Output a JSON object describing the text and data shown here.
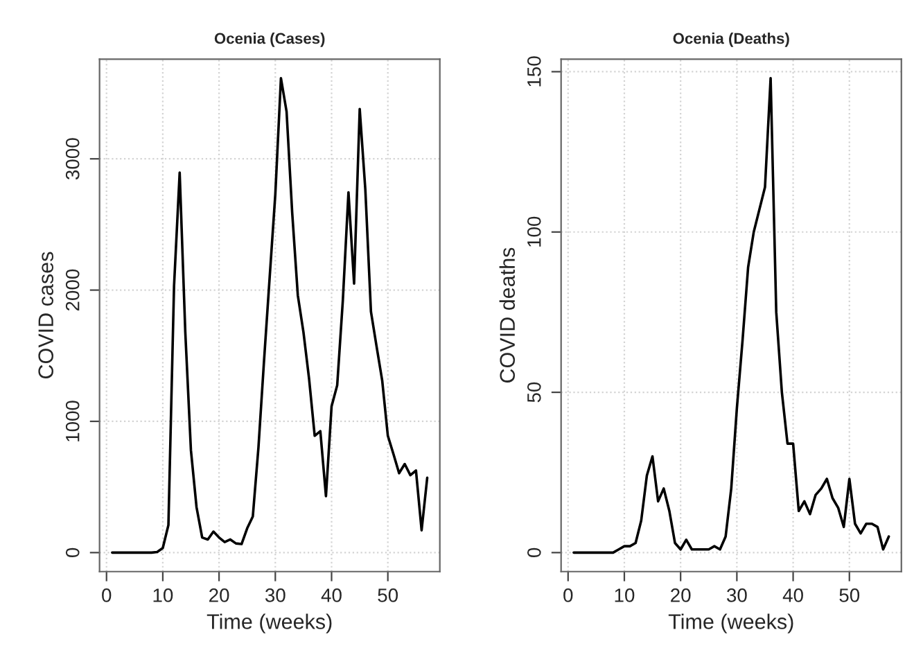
{
  "chart_data": [
    {
      "type": "line",
      "title": "Ocenia (Cases)",
      "xlabel": "Time (weeks)",
      "ylabel": "COVID cases",
      "x": [
        1,
        2,
        3,
        4,
        5,
        6,
        7,
        8,
        9,
        10,
        11,
        12,
        13,
        14,
        15,
        16,
        17,
        18,
        19,
        20,
        21,
        22,
        23,
        24,
        25,
        26,
        27,
        28,
        29,
        30,
        31,
        32,
        33,
        34,
        35,
        36,
        37,
        38,
        39,
        40,
        41,
        42,
        43,
        44,
        45,
        46,
        47,
        48,
        49,
        50,
        51,
        52,
        53,
        54,
        55,
        56,
        57
      ],
      "series": [
        {
          "color": "#000000",
          "values": [
            0,
            0,
            0,
            0,
            0,
            0,
            0,
            0,
            5,
            35,
            210,
            2030,
            2895,
            1680,
            780,
            345,
            115,
            100,
            160,
            115,
            80,
            100,
            70,
            65,
            185,
            275,
            800,
            1465,
            2100,
            2730,
            3615,
            3360,
            2590,
            1960,
            1680,
            1325,
            890,
            925,
            430,
            1115,
            1275,
            1920,
            2745,
            2050,
            3380,
            2765,
            1835,
            1570,
            1310,
            890,
            750,
            605,
            675,
            590,
            625,
            170,
            570
          ]
        }
      ],
      "xlim": [
        -1.24,
        59.24
      ],
      "ylim": [
        -144.6,
        3759.6
      ],
      "xticks": [
        0,
        10,
        20,
        30,
        40,
        50
      ],
      "yticks": [
        0,
        1000,
        2000,
        3000
      ],
      "grid": true,
      "line_style": "solid",
      "marker": "none"
    },
    {
      "type": "line",
      "title": "Ocenia (Deaths)",
      "xlabel": "Time (weeks)",
      "ylabel": "COVID deaths",
      "x": [
        1,
        2,
        3,
        4,
        5,
        6,
        7,
        8,
        9,
        10,
        11,
        12,
        13,
        14,
        15,
        16,
        17,
        18,
        19,
        20,
        21,
        22,
        23,
        24,
        25,
        26,
        27,
        28,
        29,
        30,
        31,
        32,
        33,
        34,
        35,
        36,
        37,
        38,
        39,
        40,
        41,
        42,
        43,
        44,
        45,
        46,
        47,
        48,
        49,
        50,
        51,
        52,
        53,
        54,
        55,
        56,
        57
      ],
      "series": [
        {
          "color": "#000000",
          "values": [
            0,
            0,
            0,
            0,
            0,
            0,
            0,
            0,
            1,
            2,
            2,
            3,
            10,
            24,
            30,
            16,
            20,
            13,
            3,
            1,
            4,
            1,
            1,
            1,
            1,
            2,
            1,
            5,
            20,
            45,
            66,
            89,
            100,
            107,
            114,
            148,
            75,
            50,
            34,
            34,
            13,
            16,
            12,
            18,
            20,
            23,
            17,
            14,
            8,
            23,
            9,
            6,
            9,
            9,
            8,
            1,
            5
          ]
        }
      ],
      "xlim": [
        -1.24,
        59.24
      ],
      "ylim": [
        -5.92,
        153.92
      ],
      "xticks": [
        0,
        10,
        20,
        30,
        40,
        50
      ],
      "yticks": [
        0,
        50,
        100,
        150
      ],
      "grid": true,
      "line_style": "solid",
      "marker": "none"
    }
  ]
}
